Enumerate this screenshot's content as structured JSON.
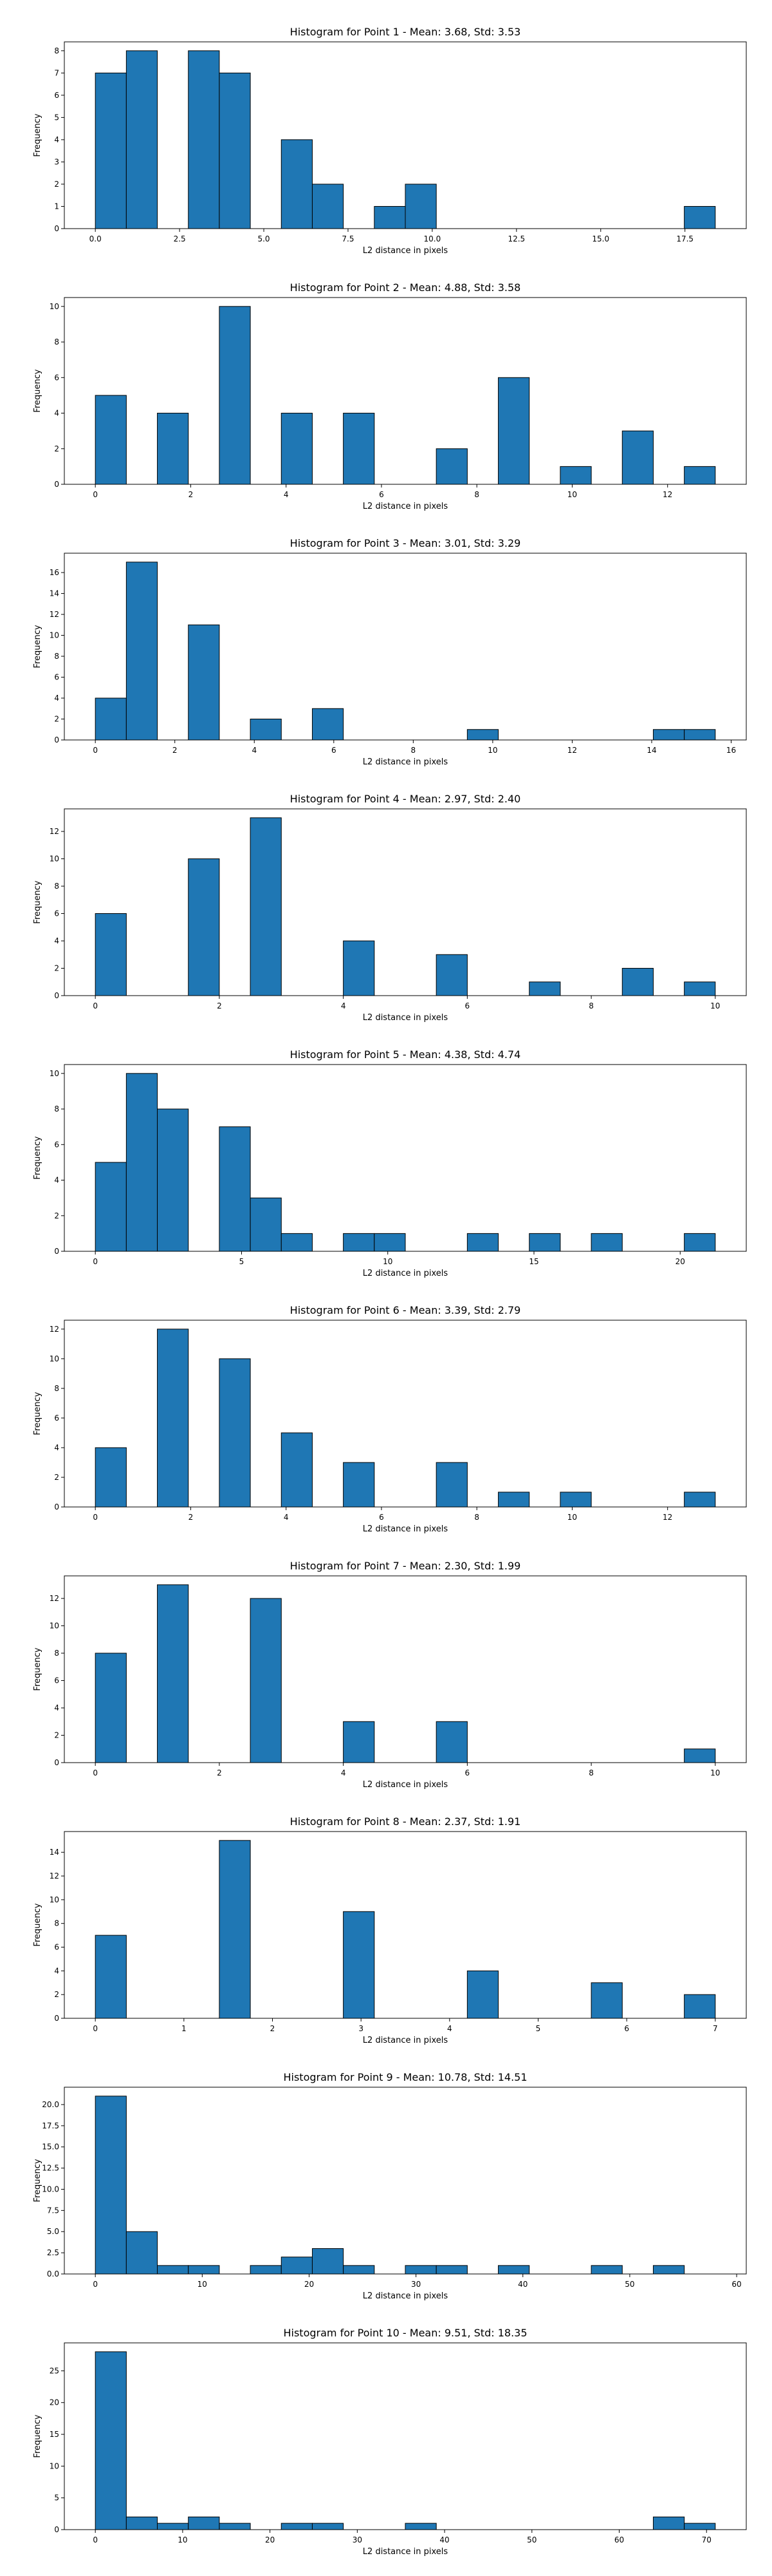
{
  "figure": {
    "bar_color": "#1f77b4",
    "edge_color": "#000000",
    "background": "#ffffff"
  },
  "chart_data": [
    {
      "type": "bar",
      "title": "Histogram for Point 1 - Mean: 3.68, Std: 3.53",
      "xlabel": "L2 distance in pixels",
      "ylabel": "Frequency",
      "bin_edges": [
        0,
        0.92,
        1.84,
        2.76,
        3.68,
        4.6,
        5.52,
        6.44,
        7.36,
        8.28,
        9.2,
        10.12,
        11.04,
        11.96,
        12.88,
        13.8,
        14.72,
        15.64,
        16.56,
        17.48,
        18.4
      ],
      "values": [
        7,
        8,
        0,
        8,
        7,
        0,
        4,
        2,
        0,
        1,
        2,
        0,
        0,
        0,
        0,
        0,
        0,
        0,
        0,
        1
      ],
      "xlim": [
        -0.92,
        19.32
      ],
      "ylim": [
        0,
        8.4
      ],
      "xticks": [
        0,
        2.5,
        5,
        7.5,
        10,
        12.5,
        15,
        17.5
      ],
      "xtick_labels": [
        "0.0",
        "2.5",
        "5.0",
        "7.5",
        "10.0",
        "12.5",
        "15.0",
        "17.5"
      ],
      "yticks": [
        0,
        1,
        2,
        3,
        4,
        5,
        6,
        7,
        8
      ],
      "ytick_labels": [
        "0",
        "1",
        "2",
        "3",
        "4",
        "5",
        "6",
        "7",
        "8"
      ],
      "grid": false
    },
    {
      "type": "bar",
      "title": "Histogram for Point 2 - Mean: 4.88, Std: 3.58",
      "xlabel": "L2 distance in pixels",
      "ylabel": "Frequency",
      "bin_edges": [
        0,
        0.65,
        1.3,
        1.95,
        2.6,
        3.25,
        3.9,
        4.55,
        5.2,
        5.85,
        6.5,
        7.15,
        7.8,
        8.45,
        9.1,
        9.75,
        10.4,
        11.05,
        11.7,
        12.35,
        13.0
      ],
      "values": [
        5,
        0,
        4,
        0,
        10,
        0,
        4,
        0,
        4,
        0,
        0,
        2,
        0,
        6,
        0,
        1,
        0,
        3,
        0,
        1
      ],
      "xlim": [
        -0.65,
        13.65
      ],
      "ylim": [
        0,
        10.5
      ],
      "xticks": [
        0,
        2,
        4,
        6,
        8,
        10,
        12
      ],
      "xtick_labels": [
        "0",
        "2",
        "4",
        "6",
        "8",
        "10",
        "12"
      ],
      "yticks": [
        0,
        2,
        4,
        6,
        8,
        10
      ],
      "ytick_labels": [
        "0",
        "2",
        "4",
        "6",
        "8",
        "10"
      ],
      "grid": false
    },
    {
      "type": "bar",
      "title": "Histogram for Point 3 - Mean: 3.01, Std: 3.29",
      "xlabel": "L2 distance in pixels",
      "ylabel": "Frequency",
      "bin_edges": [
        0,
        0.78,
        1.56,
        2.34,
        3.12,
        3.9,
        4.68,
        5.46,
        6.24,
        7.02,
        7.8,
        8.58,
        9.36,
        10.14,
        10.92,
        11.7,
        12.48,
        13.26,
        14.04,
        14.82,
        15.6
      ],
      "values": [
        4,
        17,
        0,
        11,
        0,
        2,
        0,
        3,
        0,
        0,
        0,
        0,
        1,
        0,
        0,
        0,
        0,
        0,
        1,
        1
      ],
      "xlim": [
        -0.78,
        16.38
      ],
      "ylim": [
        0,
        17.85
      ],
      "xticks": [
        0,
        2,
        4,
        6,
        8,
        10,
        12,
        14,
        16
      ],
      "xtick_labels": [
        "0",
        "2",
        "4",
        "6",
        "8",
        "10",
        "12",
        "14",
        "16"
      ],
      "yticks": [
        0,
        2,
        4,
        6,
        8,
        10,
        12,
        14,
        16
      ],
      "ytick_labels": [
        "0",
        "2",
        "4",
        "6",
        "8",
        "10",
        "12",
        "14",
        "16"
      ],
      "grid": false
    },
    {
      "type": "bar",
      "title": "Histogram for Point 4 - Mean: 2.97, Std: 2.40",
      "xlabel": "L2 distance in pixels",
      "ylabel": "Frequency",
      "bin_edges": [
        0,
        0.5,
        1.0,
        1.5,
        2.0,
        2.5,
        3.0,
        3.5,
        4.0,
        4.5,
        5.0,
        5.5,
        6.0,
        6.5,
        7.0,
        7.5,
        8.0,
        8.5,
        9.0,
        9.5,
        10.0
      ],
      "values": [
        6,
        0,
        0,
        10,
        0,
        13,
        0,
        0,
        4,
        0,
        0,
        3,
        0,
        0,
        1,
        0,
        0,
        2,
        0,
        1
      ],
      "xlim": [
        -0.5,
        10.5
      ],
      "ylim": [
        0,
        13.65
      ],
      "xticks": [
        0,
        2,
        4,
        6,
        8,
        10
      ],
      "xtick_labels": [
        "0",
        "2",
        "4",
        "6",
        "8",
        "10"
      ],
      "yticks": [
        0,
        2,
        4,
        6,
        8,
        10,
        12
      ],
      "ytick_labels": [
        "0",
        "2",
        "4",
        "6",
        "8",
        "10",
        "12"
      ],
      "grid": false
    },
    {
      "type": "bar",
      "title": "Histogram for Point 5 - Mean: 4.38, Std: 4.74",
      "xlabel": "L2 distance in pixels",
      "ylabel": "Frequency",
      "bin_edges": [
        0,
        1.06,
        2.12,
        3.18,
        4.24,
        5.3,
        6.36,
        7.42,
        8.48,
        9.54,
        10.6,
        11.66,
        12.72,
        13.78,
        14.84,
        15.9,
        16.96,
        18.02,
        19.08,
        20.14,
        21.2
      ],
      "values": [
        5,
        10,
        8,
        0,
        7,
        3,
        1,
        0,
        1,
        1,
        0,
        0,
        1,
        0,
        1,
        0,
        1,
        0,
        0,
        1
      ],
      "xlim": [
        -1.06,
        22.26
      ],
      "ylim": [
        0,
        10.5
      ],
      "xticks": [
        0,
        5,
        10,
        15,
        20
      ],
      "xtick_labels": [
        "0",
        "5",
        "10",
        "15",
        "20"
      ],
      "yticks": [
        0,
        2,
        4,
        6,
        8,
        10
      ],
      "ytick_labels": [
        "0",
        "2",
        "4",
        "6",
        "8",
        "10"
      ],
      "grid": false
    },
    {
      "type": "bar",
      "title": "Histogram for Point 6 - Mean: 3.39, Std: 2.79",
      "xlabel": "L2 distance in pixels",
      "ylabel": "Frequency",
      "bin_edges": [
        0,
        0.65,
        1.3,
        1.95,
        2.6,
        3.25,
        3.9,
        4.55,
        5.2,
        5.85,
        6.5,
        7.15,
        7.8,
        8.45,
        9.1,
        9.75,
        10.4,
        11.05,
        11.7,
        12.35,
        13.0
      ],
      "values": [
        4,
        0,
        12,
        0,
        10,
        0,
        5,
        0,
        3,
        0,
        0,
        3,
        0,
        1,
        0,
        1,
        0,
        0,
        0,
        1
      ],
      "xlim": [
        -0.65,
        13.65
      ],
      "ylim": [
        0,
        12.6
      ],
      "xticks": [
        0,
        2,
        4,
        6,
        8,
        10,
        12
      ],
      "xtick_labels": [
        "0",
        "2",
        "4",
        "6",
        "8",
        "10",
        "12"
      ],
      "yticks": [
        0,
        2,
        4,
        6,
        8,
        10,
        12
      ],
      "ytick_labels": [
        "0",
        "2",
        "4",
        "6",
        "8",
        "10",
        "12"
      ],
      "grid": false
    },
    {
      "type": "bar",
      "title": "Histogram for Point 7 - Mean: 2.30, Std: 1.99",
      "xlabel": "L2 distance in pixels",
      "ylabel": "Frequency",
      "bin_edges": [
        0,
        0.5,
        1.0,
        1.5,
        2.0,
        2.5,
        3.0,
        3.5,
        4.0,
        4.5,
        5.0,
        5.5,
        6.0,
        6.5,
        7.0,
        7.5,
        8.0,
        8.5,
        9.0,
        9.5,
        10.0
      ],
      "values": [
        8,
        0,
        13,
        0,
        0,
        12,
        0,
        0,
        3,
        0,
        0,
        3,
        0,
        0,
        0,
        0,
        0,
        0,
        0,
        1
      ],
      "xlim": [
        -0.5,
        10.5
      ],
      "ylim": [
        0,
        13.65
      ],
      "xticks": [
        0,
        2,
        4,
        6,
        8,
        10
      ],
      "xtick_labels": [
        "0",
        "2",
        "4",
        "6",
        "8",
        "10"
      ],
      "yticks": [
        0,
        2,
        4,
        6,
        8,
        10,
        12
      ],
      "ytick_labels": [
        "0",
        "2",
        "4",
        "6",
        "8",
        "10",
        "12"
      ],
      "grid": false
    },
    {
      "type": "bar",
      "title": "Histogram for Point 8 - Mean: 2.37, Std: 1.91",
      "xlabel": "L2 distance in pixels",
      "ylabel": "Frequency",
      "bin_edges": [
        0,
        0.35,
        0.7,
        1.05,
        1.4,
        1.75,
        2.1,
        2.45,
        2.8,
        3.15,
        3.5,
        3.85,
        4.2,
        4.55,
        4.9,
        5.25,
        5.6,
        5.95,
        6.3,
        6.65,
        7.0
      ],
      "values": [
        7,
        0,
        0,
        0,
        15,
        0,
        0,
        0,
        9,
        0,
        0,
        0,
        4,
        0,
        0,
        0,
        3,
        0,
        0,
        2
      ],
      "xlim": [
        -0.35,
        7.35
      ],
      "ylim": [
        0,
        15.75
      ],
      "xticks": [
        0,
        1,
        2,
        3,
        4,
        5,
        6,
        7
      ],
      "xtick_labels": [
        "0",
        "1",
        "2",
        "3",
        "4",
        "5",
        "6",
        "7"
      ],
      "yticks": [
        0,
        2,
        4,
        6,
        8,
        10,
        12,
        14
      ],
      "ytick_labels": [
        "0",
        "2",
        "4",
        "6",
        "8",
        "10",
        "12",
        "14"
      ],
      "grid": false
    },
    {
      "type": "bar",
      "title": "Histogram for Point 9 - Mean: 10.78, Std: 14.51",
      "xlabel": "L2 distance in pixels",
      "ylabel": "Frequency",
      "bin_edges": [
        0,
        2.9,
        5.8,
        8.7,
        11.6,
        14.5,
        17.4,
        20.3,
        23.2,
        26.1,
        29.0,
        31.9,
        34.8,
        37.7,
        40.6,
        43.5,
        46.4,
        49.3,
        52.2,
        55.1,
        58.0
      ],
      "values": [
        21,
        5,
        1,
        1,
        0,
        1,
        2,
        3,
        1,
        0,
        1,
        1,
        0,
        1,
        0,
        0,
        1,
        0,
        1,
        0
      ],
      "xlim": [
        -2.9,
        60.9
      ],
      "ylim": [
        0,
        22.05
      ],
      "xticks": [
        0,
        10,
        20,
        30,
        40,
        50,
        60
      ],
      "xtick_labels": [
        "0",
        "10",
        "20",
        "30",
        "40",
        "50",
        "60"
      ],
      "yticks": [
        0,
        2.5,
        5,
        7.5,
        10,
        12.5,
        15,
        17.5,
        20
      ],
      "ytick_labels": [
        "0.0",
        "2.5",
        "5.0",
        "7.5",
        "10.0",
        "12.5",
        "15.0",
        "17.5",
        "20.0"
      ],
      "grid": false
    },
    {
      "type": "bar",
      "title": "Histogram for Point 10 - Mean: 9.51, Std: 18.35",
      "xlabel": "L2 distance in pixels",
      "ylabel": "Frequency",
      "bin_edges": [
        0,
        3.55,
        7.1,
        10.65,
        14.2,
        17.75,
        21.3,
        24.85,
        28.4,
        31.95,
        35.5,
        39.05,
        42.6,
        46.15,
        49.7,
        53.25,
        56.8,
        60.35,
        63.9,
        67.45,
        71.0
      ],
      "values": [
        28,
        2,
        1,
        2,
        1,
        0,
        1,
        1,
        0,
        0,
        1,
        0,
        0,
        0,
        0,
        0,
        0,
        0,
        2,
        1
      ],
      "xlim": [
        -3.55,
        74.55
      ],
      "ylim": [
        0,
        29.4
      ],
      "xticks": [
        0,
        10,
        20,
        30,
        40,
        50,
        60,
        70
      ],
      "xtick_labels": [
        "0",
        "10",
        "20",
        "30",
        "40",
        "50",
        "60",
        "70"
      ],
      "yticks": [
        0,
        5,
        10,
        15,
        20,
        25
      ],
      "ytick_labels": [
        "0",
        "5",
        "10",
        "15",
        "20",
        "25"
      ],
      "grid": false
    }
  ]
}
